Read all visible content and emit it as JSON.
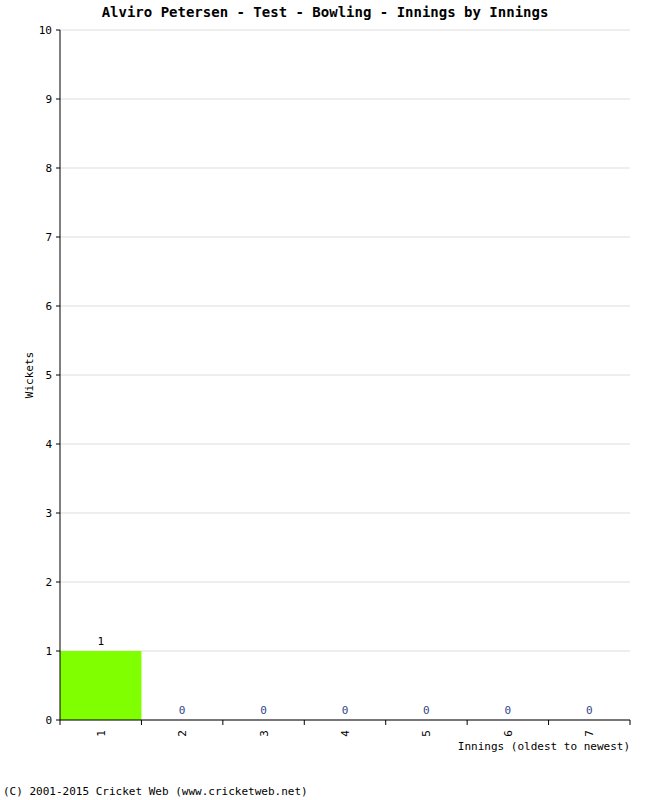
{
  "chart_data": {
    "type": "bar",
    "title": "Alviro Petersen - Test - Bowling - Innings by Innings",
    "x_label": "Innings (oldest to newest)",
    "y_label": "Wickets",
    "annotations": [
      "(C) 2001-2015 Cricket Web (www.cricketweb.net)"
    ],
    "categories": [
      "1",
      "2",
      "3",
      "4",
      "5",
      "6",
      "7"
    ],
    "values": [
      1,
      0,
      0,
      0,
      0,
      0,
      0
    ],
    "color": "#80ff00",
    "ylim": [
      0,
      10
    ],
    "yticks": [
      0,
      1,
      2,
      3,
      4,
      5,
      6,
      7,
      8,
      9,
      10
    ],
    "grid": true,
    "data_labels": true
  }
}
